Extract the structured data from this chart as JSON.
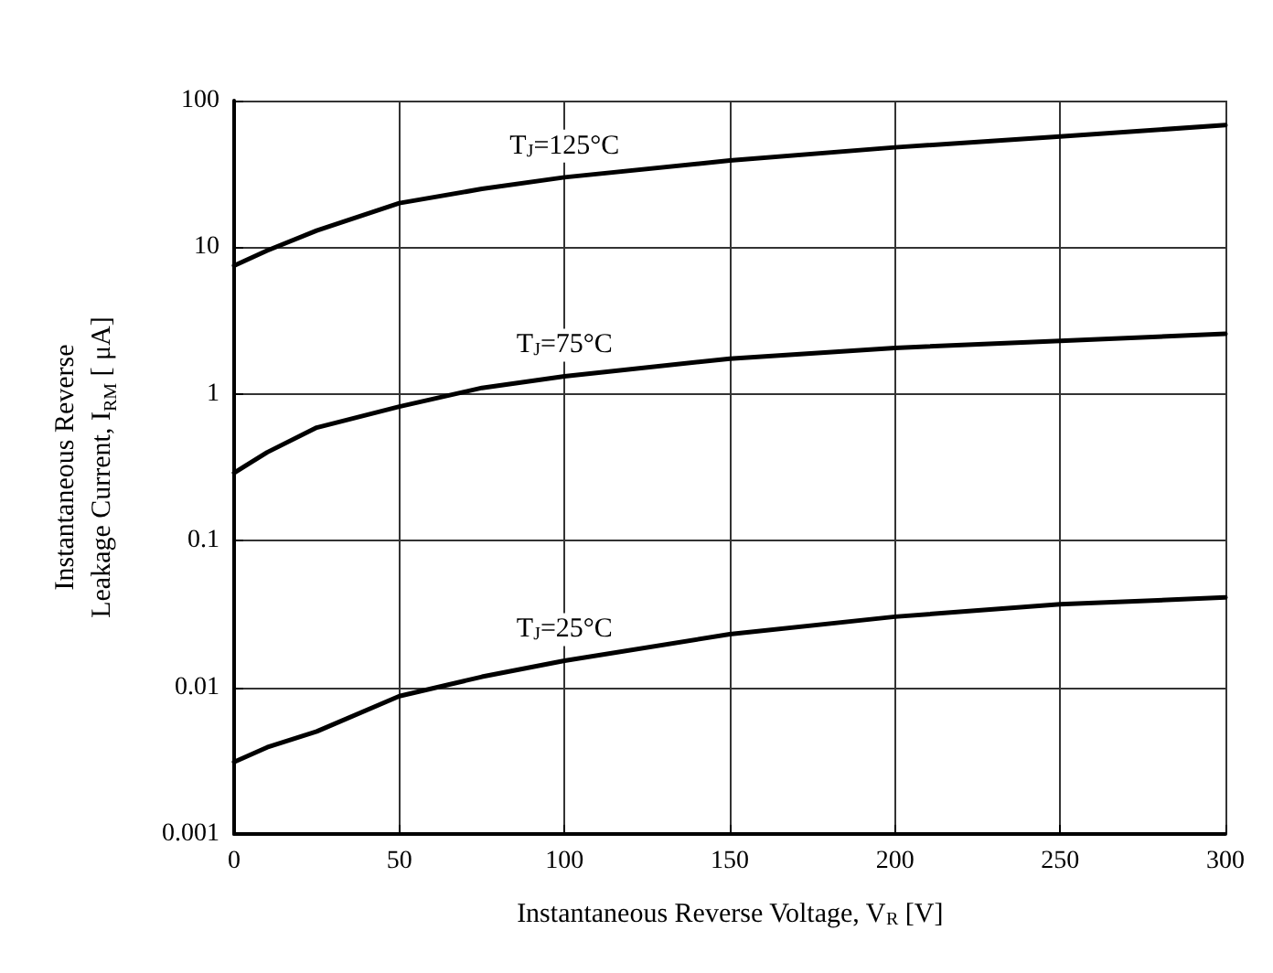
{
  "chart_data": {
    "type": "line",
    "xlabel": "Instantaneous Reverse Voltage, V$_{R}$ [V]",
    "ylabel": "Instantaneous Reverse\nLeakage Current, I$_{RM}$ [ μA]",
    "x": [
      0,
      10,
      25,
      50,
      75,
      100,
      150,
      200,
      250,
      300
    ],
    "series": [
      {
        "name": "T$_{J}$=125°C",
        "color": "#000000",
        "values": [
          7.5,
          9.5,
          13,
          20,
          25,
          30,
          39,
          48,
          57,
          68
        ]
      },
      {
        "name": "T$_{J}$=75°C",
        "color": "#000000",
        "values": [
          0.29,
          0.4,
          0.59,
          0.82,
          1.1,
          1.32,
          1.74,
          2.06,
          2.3,
          2.57
        ]
      },
      {
        "name": "T$_{J}$=25°C",
        "color": "#000000",
        "values": [
          0.0031,
          0.0039,
          0.005,
          0.0087,
          0.0118,
          0.0152,
          0.023,
          0.0303,
          0.0368,
          0.041
        ]
      }
    ],
    "xlim": [
      0,
      300
    ],
    "xticks": [
      0,
      50,
      100,
      150,
      200,
      250,
      300
    ],
    "ylim": [
      0.001,
      100
    ],
    "yticks": [
      {
        "value": 0.001,
        "label": "0.001"
      },
      {
        "value": 0.01,
        "label": "0.01"
      },
      {
        "value": 0.1,
        "label": "0.1"
      },
      1,
      10,
      100
    ],
    "log": "y",
    "grid": true,
    "legend": false,
    "marker": "none",
    "line_style": "solid"
  }
}
